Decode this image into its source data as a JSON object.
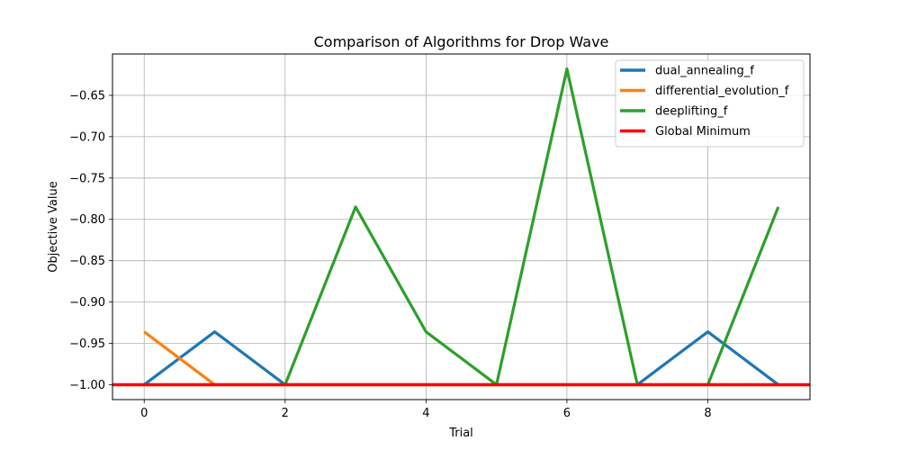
{
  "chart_data": {
    "type": "line",
    "title": "Comparison of Algorithms for Drop Wave",
    "xlabel": "Trial",
    "ylabel": "Objective Value",
    "xlim": [
      -0.45,
      9.45
    ],
    "ylim": [
      -1.018,
      -0.6
    ],
    "xticks": [
      0,
      2,
      4,
      6,
      8
    ],
    "xtick_labels": [
      "0",
      "2",
      "4",
      "6",
      "8"
    ],
    "yticks": [
      -1.0,
      -0.95,
      -0.9,
      -0.85,
      -0.8,
      -0.75,
      -0.7,
      -0.65
    ],
    "ytick_labels": [
      "−1.00",
      "−0.95",
      "−0.90",
      "−0.85",
      "−0.80",
      "−0.75",
      "−0.70",
      "−0.65"
    ],
    "grid": true,
    "legend_position": "top-right",
    "x": [
      0,
      1,
      2,
      3,
      4,
      5,
      6,
      7,
      8,
      9
    ],
    "series": [
      {
        "name": "dual_annealing_f",
        "color": "#1f77b4",
        "values": [
          -1.0,
          -0.936,
          -1.0,
          -1.0,
          -1.0,
          -1.0,
          -1.0,
          -1.0,
          -0.936,
          -1.0
        ]
      },
      {
        "name": "differential_evolution_f",
        "color": "#ff7f0e",
        "values": [
          -0.936,
          -1.0,
          -1.0,
          -1.0,
          -1.0,
          -1.0,
          -1.0,
          -1.0,
          -1.0,
          -1.0
        ]
      },
      {
        "name": "deeplifting_f",
        "color": "#2ca02c",
        "values": [
          -1.0,
          -1.0,
          -1.0,
          -0.785,
          -0.936,
          -1.0,
          -0.618,
          -1.0,
          -1.0,
          -0.785
        ]
      }
    ],
    "hline": {
      "name": "Global Minimum",
      "color": "#ff0000",
      "y": -1.0
    }
  }
}
